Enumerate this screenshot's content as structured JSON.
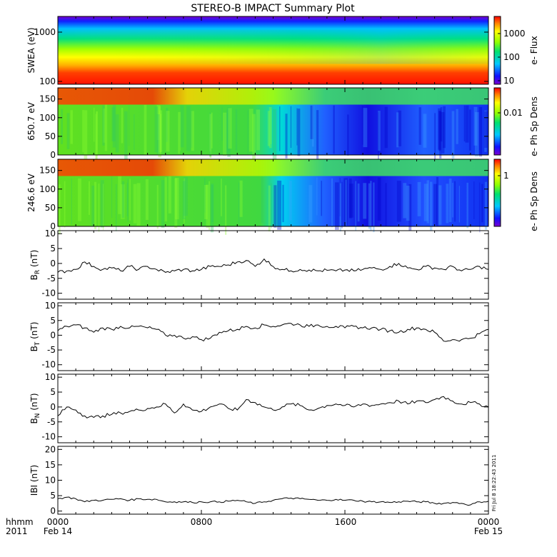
{
  "title": "STEREO-B IMPACT Summary Plot",
  "footer": {
    "left_line1": "hhmm",
    "left_line2": "2011",
    "date_left": "Feb 14",
    "date_right": "Feb 15",
    "x_ticks": [
      "0000",
      "0800",
      "1600",
      "0000"
    ]
  },
  "timestamp": "Fri Jul  8 18:22:43 2011",
  "chart_data": [
    {
      "type": "heatmap",
      "ylabel": "SWEA (eV)",
      "yscale": "log",
      "ylim": [
        100,
        2000
      ],
      "y_ticks": [
        "1000",
        "100"
      ],
      "colorbar": {
        "label": "e- Flux",
        "scale": "log",
        "ticks": [
          "1000",
          "100",
          "10"
        ],
        "range": [
          5,
          5000
        ]
      }
    },
    {
      "type": "heatmap",
      "ylabel": "650.7 eV",
      "ylim": [
        0,
        180
      ],
      "y_ticks": [
        "150",
        "100",
        "50",
        "0"
      ],
      "colorbar": {
        "label": "e- Ph Sp Dens",
        "scale": "log",
        "ticks": [
          "0.01"
        ]
      }
    },
    {
      "type": "heatmap",
      "ylabel": "246.6 eV",
      "ylim": [
        0,
        180
      ],
      "y_ticks": [
        "150",
        "100",
        "50",
        "0"
      ],
      "colorbar": {
        "label": "e- Ph Sp Dens",
        "scale": "log",
        "ticks": [
          "1"
        ]
      }
    },
    {
      "type": "line",
      "ylabel_main": "B",
      "ylabel_sub": "R",
      "ylabel_unit": " (nT)",
      "ylim": [
        -12,
        11
      ],
      "y_ticks": [
        "10",
        "5",
        "0",
        "-5",
        "-10"
      ],
      "x_hours": [
        0,
        0.5,
        1,
        1.5,
        2,
        2.5,
        3,
        3.5,
        4,
        4.5,
        5,
        5.5,
        6,
        6.5,
        7,
        7.5,
        8,
        8.5,
        9,
        9.5,
        10,
        10.5,
        11,
        11.5,
        12,
        12.5,
        13,
        13.5,
        14,
        14.5,
        15,
        15.5,
        16,
        16.5,
        17,
        17.5,
        18,
        18.5,
        19,
        19.5,
        20,
        20.5,
        21,
        21.5,
        22,
        22.5,
        23,
        23.5,
        24
      ],
      "values": [
        -3,
        -2.5,
        -2,
        0.5,
        -1,
        -2,
        -1.5,
        -2.5,
        -1,
        -2,
        -1,
        -2,
        -3,
        -2.5,
        -2,
        -2.5,
        -2,
        -1,
        -1,
        -0.5,
        0.5,
        1,
        -1,
        1.5,
        -1,
        -2,
        -2.5,
        -2,
        -2.2,
        -2.5,
        -2.3,
        -2.5,
        -2.2,
        -2.5,
        -2,
        -1.5,
        -2,
        -1,
        0,
        -1.5,
        -2,
        -1,
        -1.5,
        -2,
        -1,
        -2.5,
        -2,
        -1,
        -2
      ]
    },
    {
      "type": "line",
      "ylabel_main": "B",
      "ylabel_sub": "T",
      "ylabel_unit": " (nT)",
      "ylim": [
        -12,
        11
      ],
      "y_ticks": [
        "10",
        "5",
        "0",
        "-5",
        "-10"
      ],
      "x_hours": [
        0,
        0.5,
        1,
        1.5,
        2,
        2.5,
        3,
        3.5,
        4,
        4.5,
        5,
        5.5,
        6,
        6.5,
        7,
        7.5,
        8,
        8.5,
        9,
        9.5,
        10,
        10.5,
        11,
        11.5,
        12,
        12.5,
        13,
        13.5,
        14,
        14.5,
        15,
        15.5,
        16,
        16.5,
        17,
        17.5,
        18,
        18.5,
        19,
        19.5,
        20,
        20.5,
        21,
        21.5,
        22,
        22.5,
        23,
        23.5,
        24
      ],
      "values": [
        1.5,
        3,
        3.5,
        2.5,
        1,
        2.5,
        2,
        3,
        2.5,
        3,
        2.5,
        2,
        0,
        0,
        -1,
        -0.5,
        -1.5,
        -1,
        1,
        1.5,
        2,
        3,
        2.5,
        3.5,
        3,
        3.5,
        4,
        3.5,
        3,
        3.5,
        3,
        3,
        2.5,
        3,
        2.5,
        2.5,
        2,
        1.5,
        1,
        2,
        2.5,
        2,
        1,
        -2,
        -1.5,
        -1.5,
        -1,
        0.5,
        2
      ]
    },
    {
      "type": "line",
      "ylabel_main": "B",
      "ylabel_sub": "N",
      "ylabel_unit": " (nT)",
      "ylim": [
        -12,
        11
      ],
      "y_ticks": [
        "10",
        "5",
        "0",
        "-5",
        "-10"
      ],
      "x_hours": [
        0,
        0.5,
        1,
        1.5,
        2,
        2.5,
        3,
        3.5,
        4,
        4.5,
        5,
        5.5,
        6,
        6.5,
        7,
        7.5,
        8,
        8.5,
        9,
        9.5,
        10,
        10.5,
        11,
        11.5,
        12,
        12.5,
        13,
        13.5,
        14,
        14.5,
        15,
        15.5,
        16,
        16.5,
        17,
        17.5,
        18,
        18.5,
        19,
        19.5,
        20,
        20.5,
        21,
        21.5,
        22,
        22.5,
        23,
        23.5,
        24
      ],
      "values": [
        -3,
        0,
        -1,
        -3,
        -3.5,
        -3,
        -2.5,
        -2,
        -1.5,
        -1,
        -0.5,
        0,
        1,
        -2,
        1,
        -1,
        -1.5,
        0,
        1,
        -0.5,
        -1,
        2.5,
        1.5,
        0,
        -1,
        0,
        1,
        0.5,
        -1,
        -0.5,
        0.5,
        1,
        0.5,
        0,
        1,
        0.5,
        1,
        1.5,
        2,
        1,
        2,
        1.5,
        2.5,
        3.5,
        2,
        1,
        1.5,
        1,
        0
      ]
    },
    {
      "type": "line",
      "ylabel_main": "IBI",
      "ylabel_sub": "",
      "ylabel_unit": " (nT)",
      "ylim": [
        -1,
        21
      ],
      "y_ticks": [
        "20",
        "15",
        "10",
        "5",
        "0"
      ],
      "x_hours": [
        0,
        0.5,
        1,
        1.5,
        2,
        2.5,
        3,
        3.5,
        4,
        4.5,
        5,
        5.5,
        6,
        6.5,
        7,
        7.5,
        8,
        8.5,
        9,
        9.5,
        10,
        10.5,
        11,
        11.5,
        12,
        12.5,
        13,
        13.5,
        14,
        14.5,
        15,
        15.5,
        16,
        16.5,
        17,
        17.5,
        18,
        18.5,
        19,
        19.5,
        20,
        20.5,
        21,
        21.5,
        22,
        22.5,
        23,
        23.5,
        24
      ],
      "values": [
        4,
        4.5,
        4,
        3,
        3.5,
        3.5,
        3.8,
        4,
        3.5,
        4,
        3.8,
        3.8,
        3,
        3,
        3,
        2.8,
        3,
        3,
        3,
        3.2,
        3.5,
        3,
        2.5,
        3,
        3.5,
        4,
        4.2,
        4,
        3.8,
        3.5,
        3.5,
        3.8,
        3.5,
        3.5,
        3.2,
        3,
        3,
        2.8,
        3,
        3.2,
        3,
        3,
        2.5,
        2.5,
        2.8,
        2.5,
        2,
        3,
        3.2
      ]
    }
  ]
}
